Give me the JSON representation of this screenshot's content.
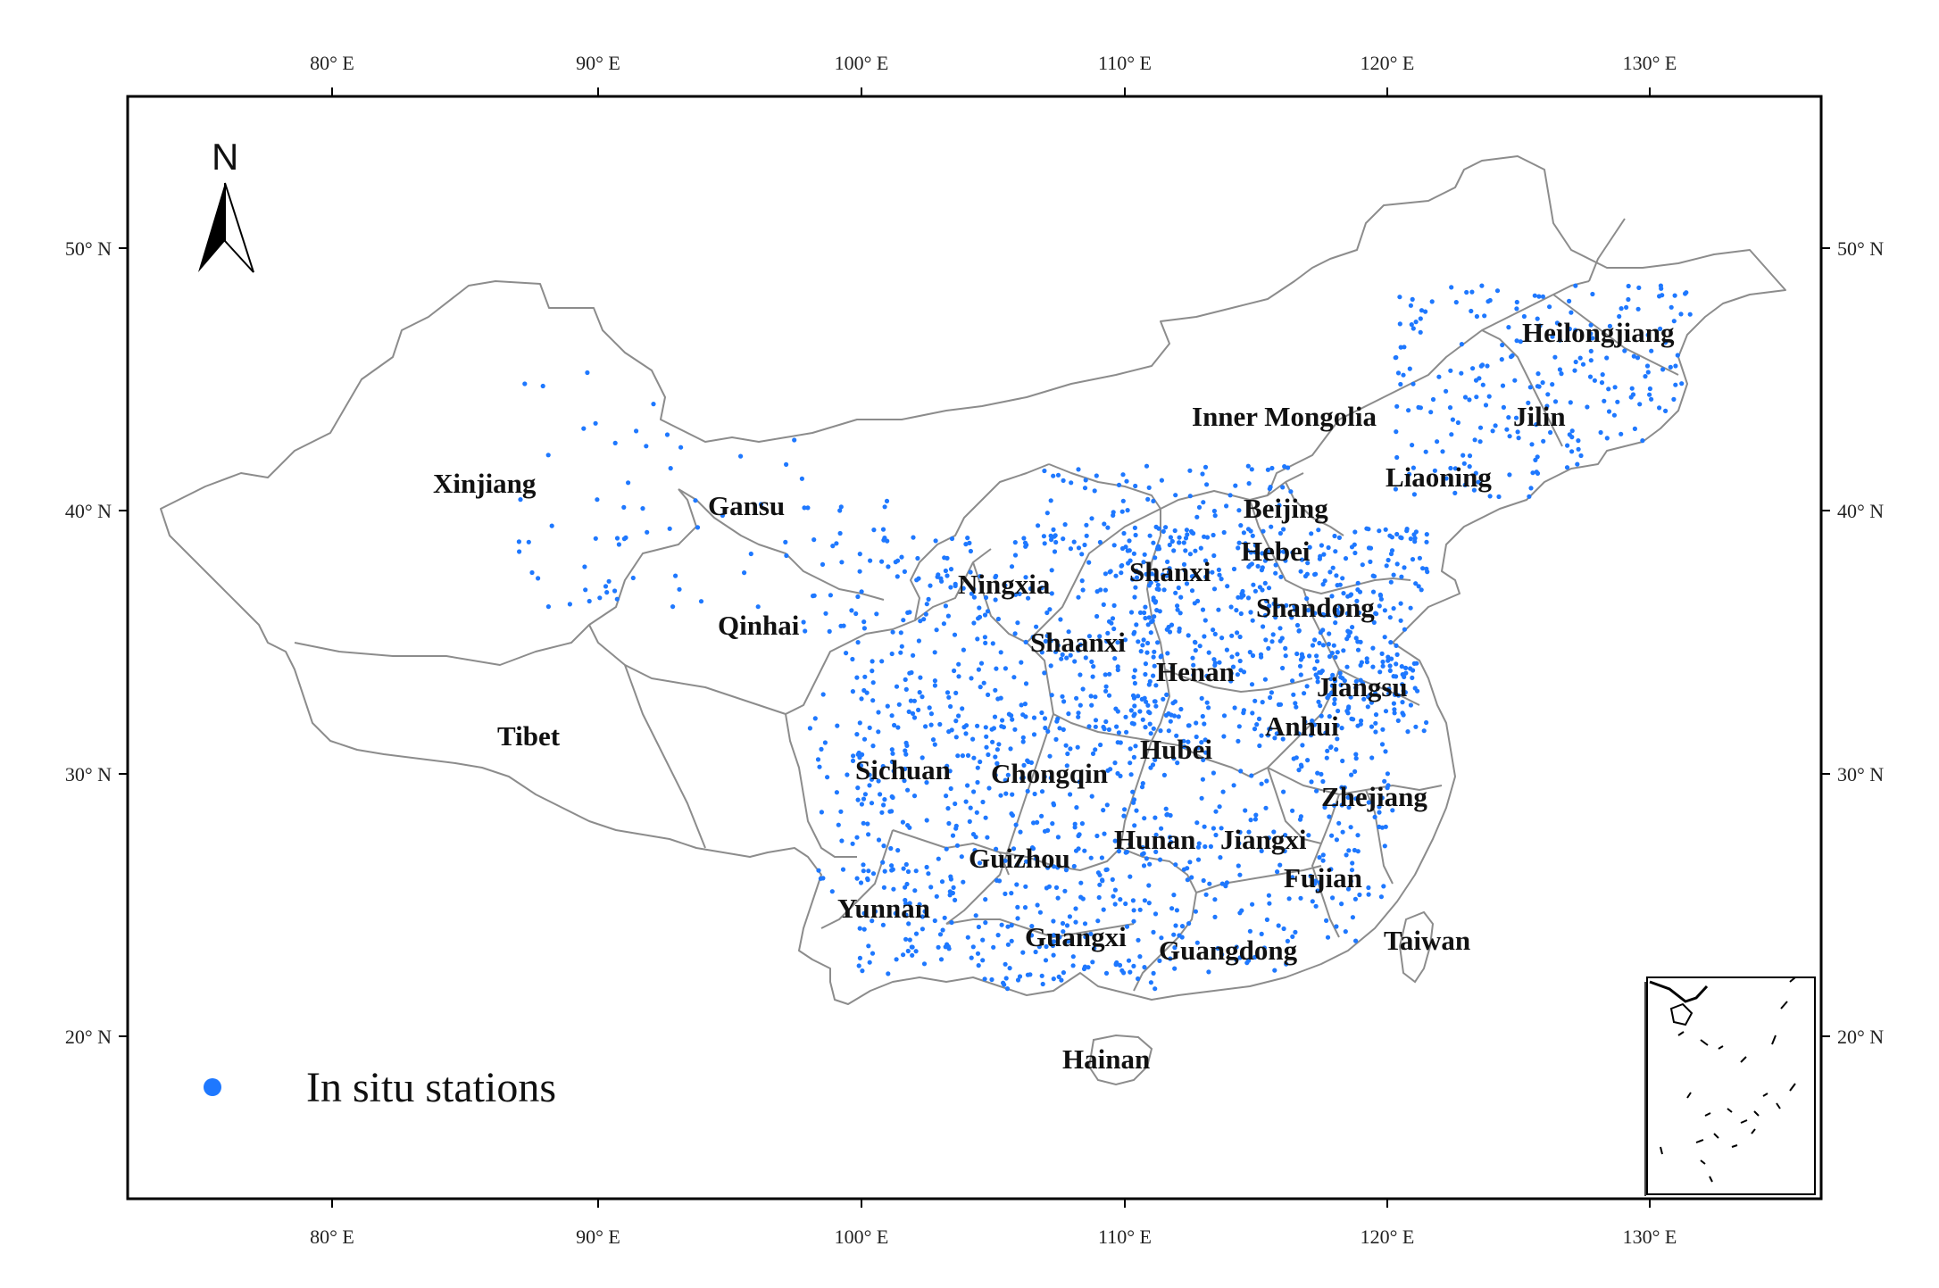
{
  "north_label": "N",
  "legend": {
    "label": "In situ stations",
    "color": "#1e78ff"
  },
  "colors": {
    "station": "#1e78ff",
    "border": "#8c8c8c",
    "frame": "#000000"
  },
  "axes": {
    "lon_ticks": [
      "80° E",
      "90° E",
      "100° E",
      "110° E",
      "120° E",
      "130° E"
    ],
    "lat_ticks": [
      "50° N",
      "40° N",
      "30° N",
      "20° N"
    ]
  },
  "provinces": [
    {
      "id": "xinjiang",
      "name": "Xinjiang"
    },
    {
      "id": "gansu",
      "name": "Gansu"
    },
    {
      "id": "qinghai",
      "name": "Qinhai"
    },
    {
      "id": "tibet",
      "name": "Tibet"
    },
    {
      "id": "inner-mongolia",
      "name": "Inner Mongolia"
    },
    {
      "id": "heilongjiang",
      "name": "Heilongjiang"
    },
    {
      "id": "jilin",
      "name": "Jilin"
    },
    {
      "id": "liaoning",
      "name": "Liaoning"
    },
    {
      "id": "beijing",
      "name": "Beijing"
    },
    {
      "id": "hebei",
      "name": "Hebei"
    },
    {
      "id": "shanxi",
      "name": "Shanxi"
    },
    {
      "id": "ningxia",
      "name": "Ningxia"
    },
    {
      "id": "shandong",
      "name": "Shandong"
    },
    {
      "id": "shaanxi",
      "name": "Shaanxi"
    },
    {
      "id": "henan",
      "name": "Henan"
    },
    {
      "id": "jiangsu",
      "name": "Jiangsu"
    },
    {
      "id": "anhui",
      "name": "Anhui"
    },
    {
      "id": "hubei",
      "name": "Hubei"
    },
    {
      "id": "sichuan",
      "name": "Sichuan"
    },
    {
      "id": "chongqing",
      "name": "Chongqin"
    },
    {
      "id": "zhejiang",
      "name": "Zhejiang"
    },
    {
      "id": "hunan",
      "name": "Hunan"
    },
    {
      "id": "jiangxi",
      "name": "Jiangxi"
    },
    {
      "id": "guizhou",
      "name": "Guizhou"
    },
    {
      "id": "fujian",
      "name": "Fujian"
    },
    {
      "id": "yunnan",
      "name": "Yunnan"
    },
    {
      "id": "guangxi",
      "name": "Guangxi"
    },
    {
      "id": "guangdong",
      "name": "Guangdong"
    },
    {
      "id": "taiwan",
      "name": "Taiwan"
    },
    {
      "id": "hainan",
      "name": "Hainan"
    }
  ]
}
